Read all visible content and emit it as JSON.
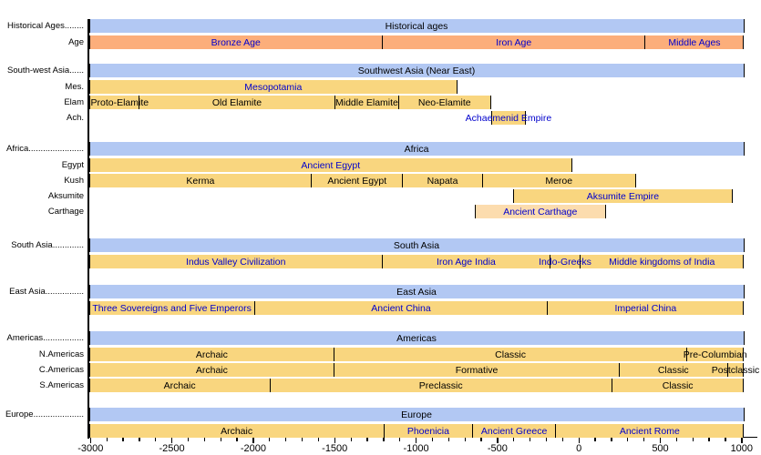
{
  "chart_data": {
    "type": "bar",
    "subtype": "historical-timeline",
    "x_domain": [
      -3010,
      1015
    ],
    "grid": false,
    "axis": {
      "minor_tick_step": 100,
      "ticks": [
        {
          "year": -3000,
          "label": "-3000"
        },
        {
          "year": -2500,
          "label": "-2500"
        },
        {
          "year": -2000,
          "label": "-2000"
        },
        {
          "year": -1500,
          "label": "-1500"
        },
        {
          "year": -1000,
          "label": "-1000"
        },
        {
          "year": -500,
          "label": "-500"
        },
        {
          "year": 0,
          "label": "0"
        },
        {
          "year": 500,
          "label": "500"
        },
        {
          "year": 1000,
          "label": "1000"
        }
      ]
    },
    "palette": {
      "header_bar": "#b2c8f3",
      "period_bar": "#f9d67f",
      "age_bar": "#fcae7b",
      "carthage_bar": "#fcdcae",
      "civilization_text": "#0000cc",
      "period_text": "#000000"
    },
    "groups": [
      {
        "group_label": "Historical Ages........",
        "header_label": "Historical ages",
        "rows": [
          {
            "label": "Age",
            "bar_color_key": "age_bar",
            "segments": [
              {
                "name": "Bronze Age",
                "start": -3010,
                "end": -1205,
                "text_color_key": "civilization_text"
              },
              {
                "name": "Iron Age",
                "start": -1205,
                "end": 410,
                "text_color_key": "civilization_text"
              },
              {
                "name": "Middle Ages",
                "start": 410,
                "end": 1015,
                "text_color_key": "civilization_text"
              }
            ]
          }
        ]
      },
      {
        "group_label": "South-west Asia......",
        "header_label": "Southwest Asia (Near East)",
        "rows": [
          {
            "label": "Mes.",
            "segments": [
              {
                "name": "Mesopotamia",
                "start": -3010,
                "end": -745,
                "text_color_key": "civilization_text"
              }
            ]
          },
          {
            "label": "Elam",
            "segments": [
              {
                "name": "Proto-Elamite",
                "start": -3010,
                "end": -2700,
                "text_color_key": "period_text",
                "align": "left"
              },
              {
                "name": "Old Elamite",
                "start": -2700,
                "end": -1495,
                "text_color_key": "period_text"
              },
              {
                "name": "Middle Elamite",
                "start": -1495,
                "end": -1105,
                "text_color_key": "period_text"
              },
              {
                "name": "Neo-Elamite",
                "start": -1105,
                "end": -540,
                "text_color_key": "period_text"
              }
            ]
          },
          {
            "label": "Ach.",
            "segments": [
              {
                "name": "Achaemenid Empire",
                "start": -540,
                "end": -325,
                "text_color_key": "civilization_text"
              }
            ]
          }
        ]
      },
      {
        "group_label": "Africa.......................",
        "header_label": "Africa",
        "rows": [
          {
            "label": "Egypt",
            "segments": [
              {
                "name": "Ancient Egypt",
                "start": -3010,
                "end": -40,
                "text_color_key": "civilization_text"
              }
            ]
          },
          {
            "label": "Kush",
            "segments": [
              {
                "name": "Kerma",
                "start": -3010,
                "end": -1640,
                "text_color_key": "period_text"
              },
              {
                "name": "Ancient Egypt",
                "start": -1640,
                "end": -1080,
                "text_color_key": "period_text"
              },
              {
                "name": "Napata",
                "start": -1080,
                "end": -590,
                "text_color_key": "period_text"
              },
              {
                "name": "Meroe",
                "start": -590,
                "end": 350,
                "text_color_key": "period_text"
              }
            ]
          },
          {
            "label": "Aksumite",
            "segments": [
              {
                "name": "Aksumite Empire",
                "start": -405,
                "end": 945,
                "text_color_key": "civilization_text"
              }
            ]
          },
          {
            "label": "Carthage",
            "bar_color_key": "carthage_bar",
            "segments": [
              {
                "name": "Ancient Carthage",
                "start": -640,
                "end": 165,
                "text_color_key": "civilization_text"
              }
            ]
          }
        ]
      },
      {
        "group_label": "South Asia.............",
        "header_label": "South Asia",
        "rows": [
          {
            "label": "",
            "segments": [
              {
                "name": "Indus Valley Civilization",
                "start": -3010,
                "end": -1205,
                "text_color_key": "civilization_text"
              },
              {
                "name": "Iron Age India",
                "start": -1205,
                "end": -175,
                "text_color_key": "civilization_text"
              },
              {
                "name": "Indo-Greeks",
                "start": -175,
                "end": 10,
                "text_color_key": "civilization_text"
              },
              {
                "name": "Middle kingdoms of India",
                "start": 10,
                "end": 1015,
                "text_color_key": "civilization_text"
              }
            ]
          }
        ]
      },
      {
        "group_label": "East Asia................",
        "header_label": "East Asia",
        "rows": [
          {
            "label": "",
            "segments": [
              {
                "name": "Three Sovereigns and Five Emperors",
                "start": -3010,
                "end": -1990,
                "text_color_key": "civilization_text"
              },
              {
                "name": "Ancient China",
                "start": -1990,
                "end": -190,
                "text_color_key": "civilization_text"
              },
              {
                "name": "Imperial China",
                "start": -190,
                "end": 1015,
                "text_color_key": "civilization_text"
              }
            ]
          }
        ]
      },
      {
        "group_label": "Americas.................",
        "header_label": "Americas",
        "rows": [
          {
            "label": "N.Americas",
            "segments": [
              {
                "name": "Archaic",
                "start": -3010,
                "end": -1500,
                "text_color_key": "period_text"
              },
              {
                "name": "Classic",
                "start": -1500,
                "end": 665,
                "text_color_key": "period_text"
              },
              {
                "name": "Pre-Columbian",
                "start": 665,
                "end": 1015,
                "text_color_key": "period_text"
              }
            ]
          },
          {
            "label": "C.Americas",
            "segments": [
              {
                "name": "Archaic",
                "start": -3010,
                "end": -1500,
                "text_color_key": "period_text"
              },
              {
                "name": "Formative",
                "start": -1500,
                "end": 250,
                "text_color_key": "period_text"
              },
              {
                "name": "Classic",
                "start": 250,
                "end": 915,
                "text_color_key": "period_text"
              },
              {
                "name": "Postclassic",
                "start": 915,
                "end": 1015,
                "text_color_key": "period_text"
              }
            ]
          },
          {
            "label": "S.Americas",
            "segments": [
              {
                "name": "Archaic",
                "start": -3010,
                "end": -1895,
                "text_color_key": "period_text"
              },
              {
                "name": "Preclassic",
                "start": -1895,
                "end": 205,
                "text_color_key": "period_text"
              },
              {
                "name": "Classic",
                "start": 205,
                "end": 1015,
                "text_color_key": "period_text"
              }
            ]
          }
        ]
      },
      {
        "group_label": "Europe.....................",
        "header_label": "Europe",
        "rows": [
          {
            "label": "",
            "segments": [
              {
                "name": "Archaic",
                "start": -3010,
                "end": -1195,
                "text_color_key": "period_text"
              },
              {
                "name": "Phoenicia",
                "start": -1195,
                "end": -650,
                "text_color_key": "civilization_text"
              },
              {
                "name": "Ancient Greece",
                "start": -650,
                "end": -140,
                "text_color_key": "civilization_text"
              },
              {
                "name": "Ancient Rome",
                "start": -140,
                "end": 1015,
                "text_color_key": "civilization_text"
              }
            ]
          }
        ]
      }
    ]
  }
}
